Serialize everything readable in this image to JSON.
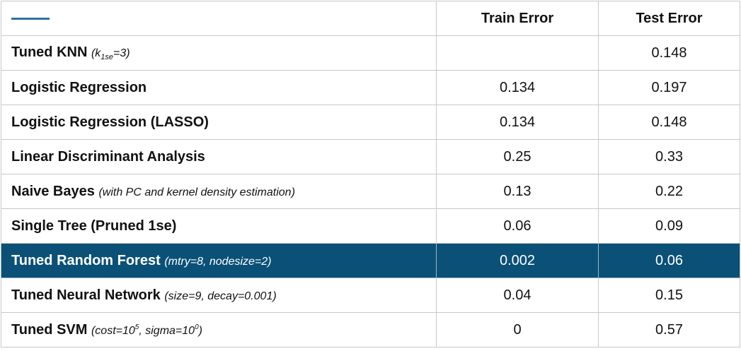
{
  "table": {
    "header": {
      "col_train": "Train Error",
      "col_test": "Test Error"
    },
    "rows": [
      {
        "name": "Tuned KNN",
        "note": "(k",
        "sub": "1se",
        "note_end": "=3)",
        "train": "",
        "test": "0.148"
      },
      {
        "name": "Logistic Regression",
        "train": "0.134",
        "test": "0.197"
      },
      {
        "name": "Logistic Regression (LASSO)",
        "train": "0.134",
        "test": "0.148"
      },
      {
        "name": "Linear Discriminant Analysis",
        "train": "0.25",
        "test": "0.33"
      },
      {
        "name": "Naive Bayes",
        "note": "(with PC and kernel density estimation)",
        "train": "0.13",
        "test": "0.22"
      },
      {
        "name": "Single Tree (Pruned 1se)",
        "train": "0.06",
        "test": "0.09"
      },
      {
        "name": "Tuned Random Forest",
        "note": "(mtry=8, nodesize=2)",
        "train": "0.002",
        "test": "0.06",
        "highlight": true
      },
      {
        "name": "Tuned Neural Network",
        "note": "(size=9, decay=0.001)",
        "train": "0.04",
        "test": "0.15"
      },
      {
        "name": "Tuned SVM",
        "note_a": "(cost=10",
        "sup_a": "5",
        "note_b": ", sigma=10",
        "sup_b": "0",
        "note_c": ")",
        "train": "0",
        "test": "0.57"
      }
    ]
  },
  "colors": {
    "highlight_bg": "#0b5077",
    "highlight_text": "#ffffff",
    "header_mark": "#2e6f9e",
    "grid": "#c8c8c8"
  }
}
